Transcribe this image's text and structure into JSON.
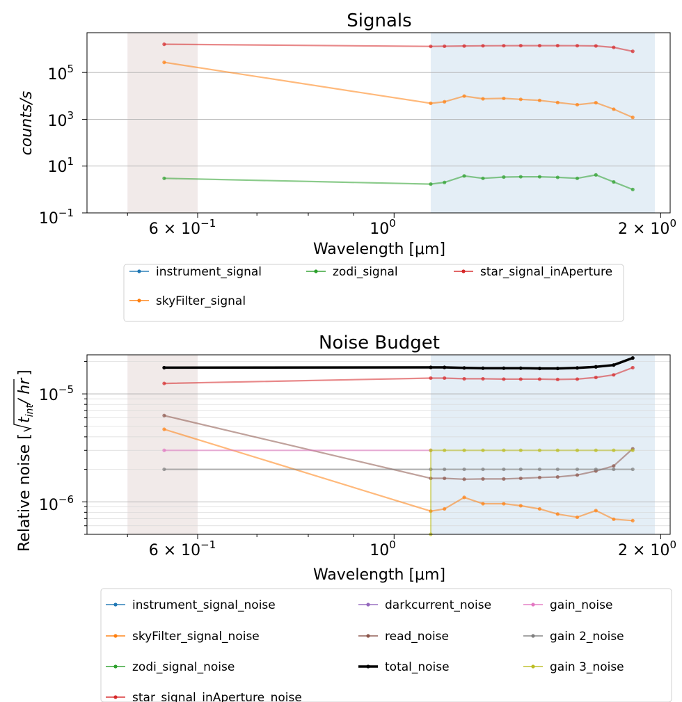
{
  "charts": [
    {
      "title": "Signals",
      "xlabel": "Wavelength [μm]",
      "ylabel": "counts/s",
      "x_tick_labels": [
        "6 × 10",
        "10",
        "2 × 10"
      ],
      "x_tick_exponents": [
        "−1",
        "0",
        "0"
      ],
      "y_tick_labels": [
        "10",
        "10",
        "10",
        "10"
      ],
      "y_tick_exponents": [
        "−1",
        "1",
        "3",
        "5"
      ]
    },
    {
      "title": "Noise Budget",
      "xlabel": "Wavelength [μm]",
      "ylabel": "Relative noise [√(t_int / hr)]",
      "ylabel_prefix": "Relative noise [",
      "ylabel_t": "t",
      "ylabel_int": "int",
      "ylabel_hr": "/ hr",
      "ylabel_suffix": "]",
      "x_tick_labels": [
        "6 × 10",
        "10",
        "2 × 10"
      ],
      "x_tick_exponents": [
        "−1",
        "0",
        "0"
      ],
      "y_tick_labels": [
        "10",
        "10"
      ],
      "y_tick_exponents": [
        "−6",
        "−5"
      ]
    }
  ],
  "chart_data": [
    {
      "type": "line",
      "title": "Signals",
      "xlabel": "Wavelength [μm]",
      "ylabel": "counts/s",
      "xscale": "log",
      "yscale": "log",
      "xlim": [
        0.45,
        2.05
      ],
      "ylim": [
        0.1,
        5000000
      ],
      "shaded_bands": [
        {
          "x": [
            0.5,
            0.6
          ],
          "color": "#8c564b"
        },
        {
          "x": [
            1.1,
            1.97
          ],
          "color": "#1f77b4"
        }
      ],
      "legend_location": "below",
      "series": [
        {
          "name": "instrument_signal",
          "color": "#1f77b4",
          "x": [],
          "y": []
        },
        {
          "name": "zodi_signal",
          "color": "#2ca02c",
          "x": [
            0.55,
            1.1,
            1.14,
            1.2,
            1.26,
            1.33,
            1.39,
            1.46,
            1.53,
            1.61,
            1.69,
            1.77,
            1.86
          ],
          "y": [
            3.0,
            1.7,
            2.0,
            3.8,
            3.0,
            3.4,
            3.5,
            3.5,
            3.3,
            3.0,
            4.2,
            2.1,
            1.0
          ]
        },
        {
          "name": "star_signal_inAperture",
          "color": "#d62728",
          "x": [
            0.55,
            1.1,
            1.14,
            1.2,
            1.26,
            1.33,
            1.39,
            1.46,
            1.53,
            1.61,
            1.69,
            1.77,
            1.86
          ],
          "y": [
            1600000,
            1300000,
            1320000,
            1350000,
            1380000,
            1390000,
            1400000,
            1400000,
            1400000,
            1390000,
            1360000,
            1180000,
            800000
          ]
        },
        {
          "name": "skyFilter_signal",
          "color": "#ff7f0e",
          "x": [
            0.55,
            1.1,
            1.14,
            1.2,
            1.26,
            1.33,
            1.39,
            1.46,
            1.53,
            1.61,
            1.69,
            1.77,
            1.86
          ],
          "y": [
            270000,
            4800,
            5600,
            9800,
            7500,
            7800,
            7100,
            6400,
            5200,
            4200,
            5100,
            2700,
            1200
          ]
        }
      ]
    },
    {
      "type": "line",
      "title": "Noise Budget",
      "xlabel": "Wavelength [μm]",
      "ylabel": "Relative noise [√(t_int / hr)]",
      "xscale": "log",
      "yscale": "log",
      "xlim": [
        0.45,
        2.05
      ],
      "ylim": [
        5e-07,
        2.3e-05
      ],
      "shaded_bands": [
        {
          "x": [
            0.5,
            0.6
          ],
          "color": "#8c564b"
        },
        {
          "x": [
            1.1,
            1.97
          ],
          "color": "#1f77b4"
        }
      ],
      "legend_location": "below",
      "series": [
        {
          "name": "instrument_signal_noise",
          "color": "#1f77b4",
          "x": [],
          "y": []
        },
        {
          "name": "skyFilter_signal_noise",
          "color": "#ff7f0e",
          "x": [
            0.55,
            1.1,
            1.14,
            1.2,
            1.26,
            1.33,
            1.39,
            1.46,
            1.53,
            1.61,
            1.69,
            1.77,
            1.86
          ],
          "y": [
            4.7e-06,
            8.2e-07,
            8.6e-07,
            1.1e-06,
            9.6e-07,
            9.6e-07,
            9.2e-07,
            8.6e-07,
            7.7e-07,
            7.2e-07,
            8.3e-07,
            6.9e-07,
            6.7e-07
          ]
        },
        {
          "name": "zodi_signal_noise",
          "color": "#2ca02c",
          "x": [],
          "y": []
        },
        {
          "name": "star_signal_inAperture_noise",
          "color": "#d62728",
          "x": [
            0.55,
            1.1,
            1.14,
            1.2,
            1.26,
            1.33,
            1.39,
            1.46,
            1.53,
            1.61,
            1.69,
            1.77,
            1.86
          ],
          "y": [
            1.25e-05,
            1.4e-05,
            1.4e-05,
            1.38e-05,
            1.38e-05,
            1.37e-05,
            1.37e-05,
            1.37e-05,
            1.36e-05,
            1.37e-05,
            1.42e-05,
            1.5e-05,
            1.75e-05
          ]
        },
        {
          "name": "darkcurrent_noise",
          "color": "#9467bd",
          "x": [],
          "y": []
        },
        {
          "name": "read_noise",
          "color": "#8c564b",
          "x": [
            0.55,
            1.1,
            1.14,
            1.2,
            1.26,
            1.33,
            1.39,
            1.46,
            1.53,
            1.61,
            1.69,
            1.77,
            1.86
          ],
          "y": [
            6.3e-06,
            1.65e-06,
            1.65e-06,
            1.62e-06,
            1.63e-06,
            1.63e-06,
            1.65e-06,
            1.68e-06,
            1.7e-06,
            1.77e-06,
            1.93e-06,
            2.15e-06,
            3.1e-06
          ]
        },
        {
          "name": "total_noise",
          "color": "#000000",
          "x": [
            0.55,
            1.1,
            1.14,
            1.2,
            1.26,
            1.33,
            1.39,
            1.46,
            1.53,
            1.61,
            1.69,
            1.77,
            1.86
          ],
          "y": [
            1.75e-05,
            1.76e-05,
            1.76e-05,
            1.74e-05,
            1.73e-05,
            1.73e-05,
            1.73e-05,
            1.72e-05,
            1.72e-05,
            1.74e-05,
            1.78e-05,
            1.85e-05,
            2.15e-05
          ]
        },
        {
          "name": "gain_noise",
          "color": "#e377c2",
          "x": [
            0.55,
            1.1
          ],
          "y": [
            3e-06,
            3e-06
          ]
        },
        {
          "name": "gain 2_noise",
          "color": "#7f7f7f",
          "x": [
            0.55,
            1.1,
            1.14,
            1.2,
            1.26,
            1.33,
            1.39,
            1.46,
            1.53,
            1.61,
            1.69,
            1.77,
            1.86
          ],
          "y": [
            2e-06,
            2e-06,
            2e-06,
            2e-06,
            2e-06,
            2e-06,
            2e-06,
            2e-06,
            2e-06,
            2e-06,
            2e-06,
            2e-06,
            2e-06
          ]
        },
        {
          "name": "gain 3_noise",
          "color": "#bcbd22",
          "x": [
            1.1,
            1.1,
            1.14,
            1.2,
            1.26,
            1.33,
            1.39,
            1.46,
            1.53,
            1.61,
            1.69,
            1.77,
            1.86
          ],
          "y": [
            5e-07,
            3e-06,
            3e-06,
            3e-06,
            3e-06,
            3e-06,
            3e-06,
            3e-06,
            3e-06,
            3e-06,
            3e-06,
            3e-06,
            3e-06
          ]
        }
      ]
    }
  ]
}
